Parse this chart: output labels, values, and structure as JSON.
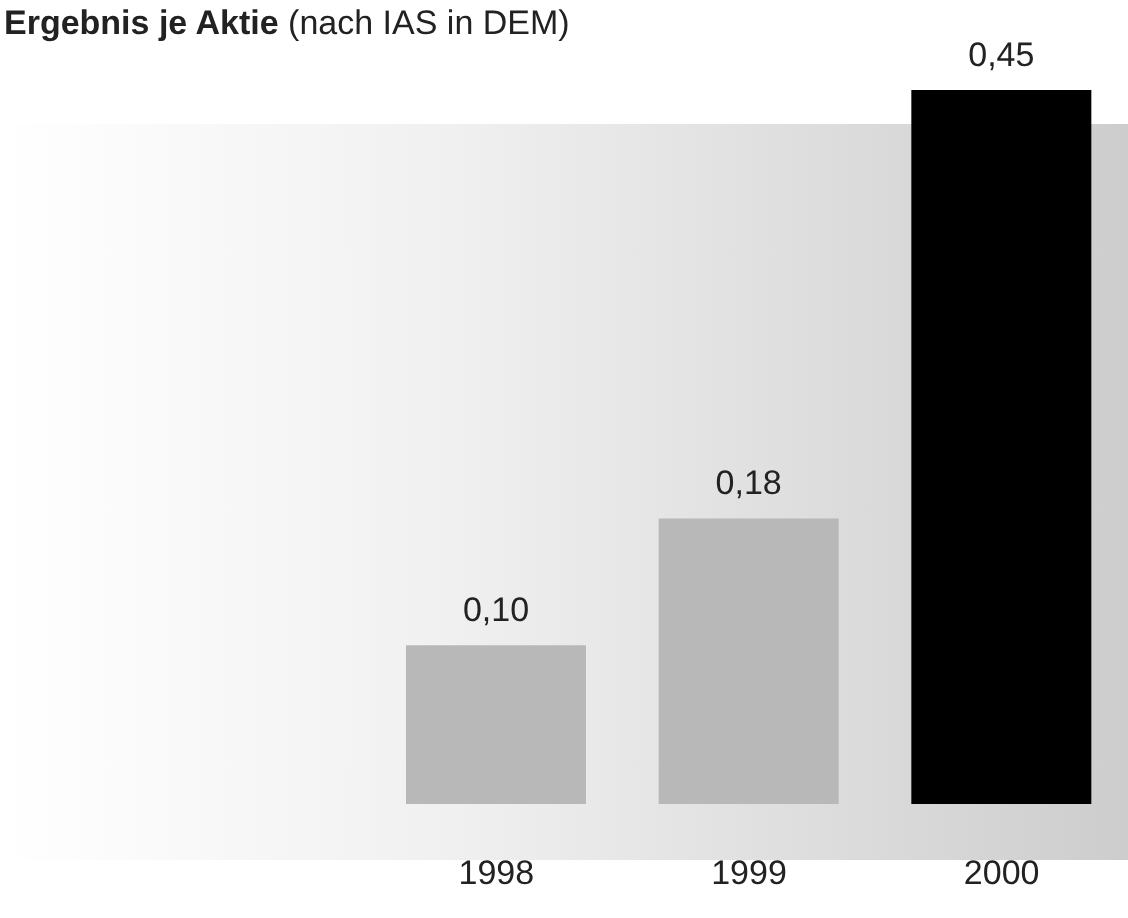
{
  "chart_data": {
    "type": "bar",
    "title": "Ergebnis je Aktie",
    "subtitle": "(nach IAS in DEM)",
    "categories": [
      "1998",
      "1999",
      "2000"
    ],
    "values": [
      0.1,
      0.18,
      0.45
    ],
    "colors": [
      "#b8b8b8",
      "#b8b8b8",
      "#000000"
    ],
    "value_labels": [
      "0,10",
      "0,18",
      "0,45"
    ],
    "ylim": [
      0,
      0.45
    ],
    "tick_labels": "x",
    "grid": false,
    "legend": false
  }
}
